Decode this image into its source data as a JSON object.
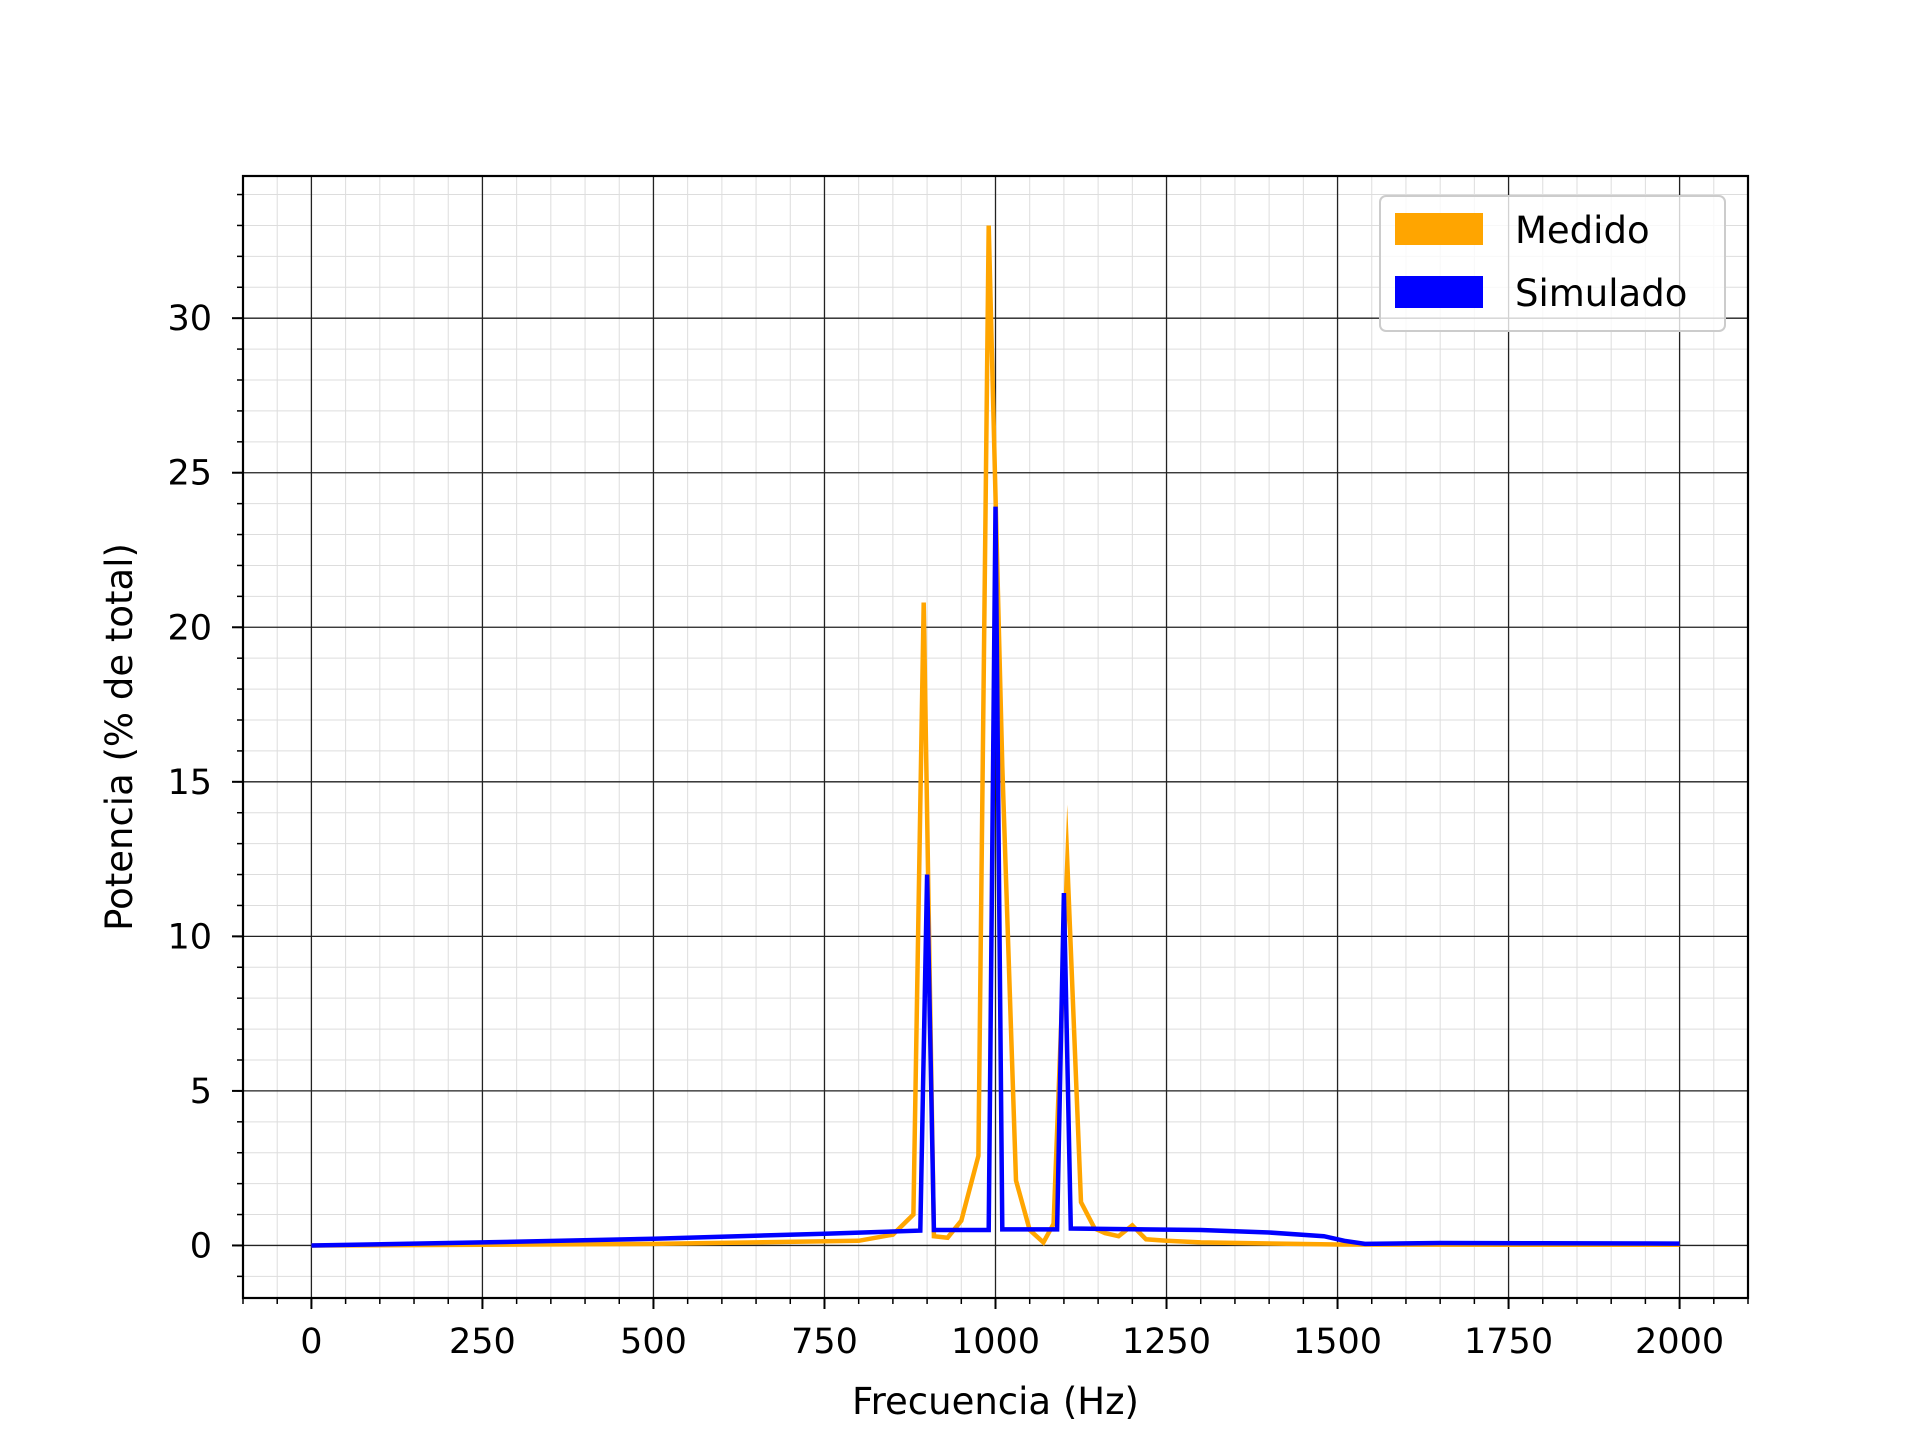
{
  "chart_data": {
    "type": "line",
    "xlabel": "Frecuencia (Hz)",
    "ylabel": "Potencia (% de total)",
    "xlim": [
      -100,
      2100
    ],
    "ylim": [
      -1.7,
      34.6
    ],
    "x_ticks": [
      0,
      250,
      500,
      750,
      1000,
      1250,
      1500,
      1750,
      2000
    ],
    "x_tick_labels": [
      "0",
      "250",
      "500",
      "750",
      "1000",
      "1250",
      "1500",
      "1750",
      "2000"
    ],
    "y_ticks": [
      0,
      5,
      10,
      15,
      20,
      25,
      30
    ],
    "y_tick_labels": [
      "0",
      "5",
      "10",
      "15",
      "20",
      "25",
      "30"
    ],
    "x_minor_step": 50,
    "y_minor_step": 1,
    "grid": true,
    "legend_position": "top-right",
    "series": [
      {
        "name": "Medido",
        "color": "#FFA500",
        "points": [
          [
            0,
            0
          ],
          [
            250,
            0.02
          ],
          [
            500,
            0.05
          ],
          [
            650,
            0.1
          ],
          [
            800,
            0.15
          ],
          [
            850,
            0.35
          ],
          [
            880,
            1.0
          ],
          [
            895,
            20.8
          ],
          [
            910,
            0.3
          ],
          [
            930,
            0.25
          ],
          [
            950,
            0.8
          ],
          [
            975,
            2.9
          ],
          [
            990,
            33.0
          ],
          [
            1010,
            15.5
          ],
          [
            1030,
            2.1
          ],
          [
            1050,
            0.5
          ],
          [
            1070,
            0.1
          ],
          [
            1085,
            0.7
          ],
          [
            1105,
            12.4
          ],
          [
            1125,
            1.4
          ],
          [
            1145,
            0.55
          ],
          [
            1160,
            0.4
          ],
          [
            1180,
            0.3
          ],
          [
            1200,
            0.65
          ],
          [
            1220,
            0.2
          ],
          [
            1250,
            0.15
          ],
          [
            1300,
            0.1
          ],
          [
            1500,
            0.03
          ],
          [
            1750,
            0.02
          ],
          [
            2000,
            0.02
          ]
        ]
      },
      {
        "name": "Simulado",
        "color": "#0000FF",
        "points": [
          [
            0,
            0
          ],
          [
            250,
            0.1
          ],
          [
            500,
            0.22
          ],
          [
            750,
            0.38
          ],
          [
            890,
            0.48
          ],
          [
            900,
            12.0
          ],
          [
            910,
            0.5
          ],
          [
            990,
            0.5
          ],
          [
            1000,
            23.9
          ],
          [
            1010,
            0.52
          ],
          [
            1090,
            0.52
          ],
          [
            1100,
            11.4
          ],
          [
            1110,
            0.55
          ],
          [
            1300,
            0.5
          ],
          [
            1400,
            0.42
          ],
          [
            1480,
            0.3
          ],
          [
            1510,
            0.15
          ],
          [
            1540,
            0.05
          ],
          [
            1650,
            0.08
          ],
          [
            1800,
            0.07
          ],
          [
            2000,
            0.06
          ]
        ]
      }
    ]
  }
}
